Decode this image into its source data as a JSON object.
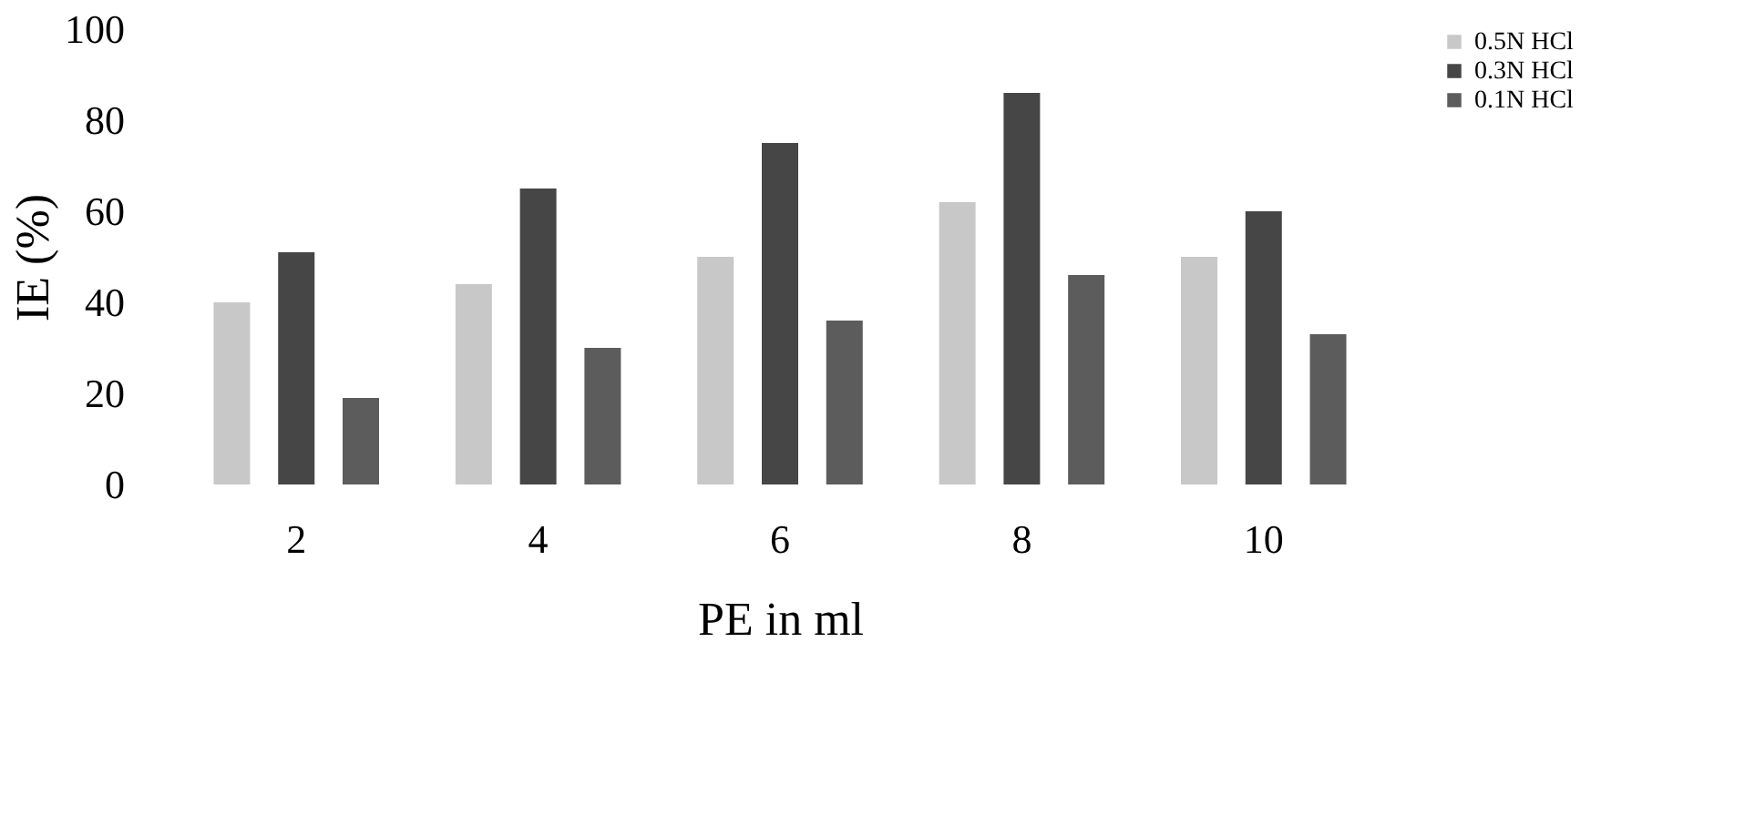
{
  "chart_data": {
    "type": "bar",
    "xlabel": "PE in ml",
    "ylabel": "IE (%)",
    "categories": [
      "2",
      "4",
      "6",
      "8",
      "10"
    ],
    "series": [
      {
        "name": "0.5N HCl",
        "color": "#c8c8c8",
        "values": [
          40,
          44,
          50,
          62,
          50
        ]
      },
      {
        "name": "0.3N HCl",
        "color": "#464646",
        "values": [
          51,
          65,
          75,
          86,
          60
        ]
      },
      {
        "name": "0.1N HCl",
        "color": "#5c5c5c",
        "values": [
          19,
          30,
          36,
          46,
          33
        ]
      }
    ],
    "ylim": [
      0,
      100
    ],
    "yticks": [
      0,
      20,
      40,
      60,
      80,
      100
    ],
    "grid": false,
    "legend": "right"
  }
}
